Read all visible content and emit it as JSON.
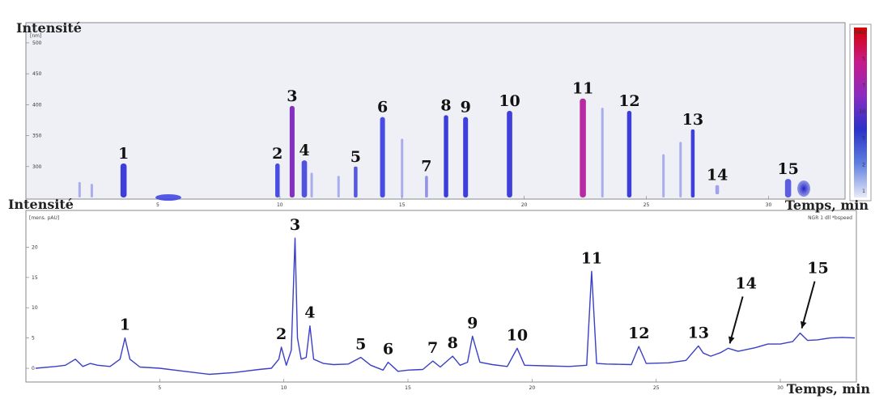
{
  "chart_data": [
    {
      "type": "heatmap",
      "ylabel": "Intensité",
      "y_unit": "[nm]",
      "xlabel": "Temps, min",
      "xlim": [
        0,
        33
      ],
      "ylim": [
        250,
        530
      ],
      "xticks": [
        5,
        10,
        15,
        20,
        25,
        30
      ],
      "yticks": [
        300,
        350,
        400,
        450,
        500
      ],
      "colorbar_labels": [
        "mAU",
        "5",
        "7",
        "10",
        "5",
        "2",
        "1"
      ],
      "colorbar_colors": [
        "#d40000",
        "#c81a8a",
        "#8a2cc0",
        "#2a32c8",
        "#5f7fe0",
        "#e8eaf8"
      ],
      "peaks": [
        {
          "label": "1",
          "x": 3.6,
          "top": 305,
          "bottom": 250,
          "w": 0.25,
          "color": "#2b2fd6"
        },
        {
          "label": "2",
          "x": 9.9,
          "top": 305,
          "bottom": 250,
          "w": 0.18,
          "color": "#3a3ee0"
        },
        {
          "label": "3",
          "x": 10.5,
          "top": 398,
          "bottom": 250,
          "w": 0.2,
          "color": "#7a1fb8"
        },
        {
          "label": "4",
          "x": 11.0,
          "top": 310,
          "bottom": 250,
          "w": 0.22,
          "color": "#4444dd"
        },
        {
          "label": "5",
          "x": 13.1,
          "top": 300,
          "bottom": 250,
          "w": 0.15,
          "color": "#4a4adf"
        },
        {
          "label": "6",
          "x": 14.2,
          "top": 380,
          "bottom": 250,
          "w": 0.2,
          "color": "#3a3ee0"
        },
        {
          "label": "7",
          "x": 16.0,
          "top": 285,
          "bottom": 250,
          "w": 0.12,
          "color": "#8a8ae8"
        },
        {
          "label": "8",
          "x": 16.8,
          "top": 383,
          "bottom": 250,
          "w": 0.18,
          "color": "#2b2fd6"
        },
        {
          "label": "9",
          "x": 17.6,
          "top": 380,
          "bottom": 250,
          "w": 0.2,
          "color": "#3030d8"
        },
        {
          "label": "10",
          "x": 19.4,
          "top": 390,
          "bottom": 250,
          "w": 0.22,
          "color": "#3030d8"
        },
        {
          "label": "11",
          "x": 22.4,
          "top": 410,
          "bottom": 250,
          "w": 0.25,
          "color": "#b21a9a"
        },
        {
          "label": "12",
          "x": 24.3,
          "top": 390,
          "bottom": 250,
          "w": 0.18,
          "color": "#2b2fd6"
        },
        {
          "label": "13",
          "x": 26.9,
          "top": 360,
          "bottom": 250,
          "w": 0.15,
          "color": "#3030d8"
        },
        {
          "label": "14",
          "x": 27.9,
          "top": 270,
          "bottom": 255,
          "w": 0.15,
          "color": "#9a9ae8"
        },
        {
          "label": "15",
          "x": 30.8,
          "top": 280,
          "bottom": 250,
          "w": 0.25,
          "color": "#5050e0"
        }
      ]
    },
    {
      "type": "line",
      "ylabel": "Intensité",
      "y_unit": "[mens. pAU]",
      "xlabel": "Temps, min",
      "note": "NGR 1 dll *bspeed",
      "xlim": [
        0,
        33
      ],
      "ylim": [
        -2,
        25
      ],
      "xticks": [
        5,
        10,
        15,
        20,
        25,
        30
      ],
      "yticks": [
        0,
        5,
        10,
        15,
        20
      ],
      "line_color": "#3a3fc8",
      "x": [
        0,
        0.8,
        1.2,
        1.6,
        1.9,
        2.2,
        2.5,
        3.0,
        3.4,
        3.6,
        3.8,
        4.2,
        5,
        6,
        7,
        8,
        9,
        9.5,
        9.8,
        9.9,
        10.1,
        10.3,
        10.45,
        10.55,
        10.7,
        10.9,
        11.05,
        11.2,
        11.6,
        12,
        12.6,
        13.1,
        13.5,
        14,
        14.2,
        14.6,
        15,
        15.6,
        16.0,
        16.3,
        16.8,
        17.1,
        17.4,
        17.6,
        17.9,
        18.4,
        19,
        19.4,
        19.7,
        20.5,
        21.5,
        22.2,
        22.4,
        22.6,
        23,
        24,
        24.3,
        24.6,
        25.5,
        26.2,
        26.7,
        26.9,
        27.2,
        27.6,
        27.9,
        28.3,
        29,
        29.5,
        30,
        30.5,
        30.8,
        31.1,
        31.5,
        32,
        32.5,
        33
      ],
      "y": [
        0,
        0.3,
        0.5,
        1.5,
        0.3,
        0.8,
        0.5,
        0.3,
        1.5,
        5.0,
        1.5,
        0.2,
        0,
        -0.5,
        -1,
        -0.7,
        -0.2,
        0,
        1.5,
        3.5,
        0.5,
        3.0,
        21.5,
        5.0,
        1.5,
        1.8,
        7.0,
        1.5,
        0.8,
        0.6,
        0.7,
        1.8,
        0.5,
        -0.3,
        1.0,
        -0.5,
        -0.3,
        -0.2,
        1.2,
        0.2,
        2.0,
        0.5,
        1.0,
        5.3,
        1.0,
        0.6,
        0.3,
        3.3,
        0.5,
        0.4,
        0.3,
        0.5,
        16.0,
        0.8,
        0.7,
        0.6,
        3.6,
        0.8,
        0.9,
        1.3,
        3.7,
        2.5,
        2.0,
        2.6,
        3.3,
        2.8,
        3.4,
        4.0,
        4.0,
        4.4,
        5.8,
        4.6,
        4.7,
        5.0,
        5.1,
        5.0
      ],
      "peaks": [
        {
          "label": "1",
          "x": 3.6,
          "y": 5.0
        },
        {
          "label": "2",
          "x": 9.9,
          "y": 3.5
        },
        {
          "label": "3",
          "x": 10.45,
          "y": 21.5
        },
        {
          "label": "4",
          "x": 11.05,
          "y": 7.0
        },
        {
          "label": "5",
          "x": 13.1,
          "y": 1.8
        },
        {
          "label": "6",
          "x": 14.2,
          "y": 1.0
        },
        {
          "label": "7",
          "x": 16.0,
          "y": 1.2
        },
        {
          "label": "8",
          "x": 16.8,
          "y": 2.0
        },
        {
          "label": "9",
          "x": 17.6,
          "y": 5.3
        },
        {
          "label": "10",
          "x": 19.4,
          "y": 3.3
        },
        {
          "label": "11",
          "x": 22.4,
          "y": 16.0
        },
        {
          "label": "12",
          "x": 24.3,
          "y": 3.6
        },
        {
          "label": "13",
          "x": 26.7,
          "y": 3.7
        },
        {
          "label": "14",
          "x": 27.9,
          "y": 3.3,
          "arrow": true
        },
        {
          "label": "15",
          "x": 30.8,
          "y": 5.8,
          "arrow": true
        }
      ]
    }
  ]
}
